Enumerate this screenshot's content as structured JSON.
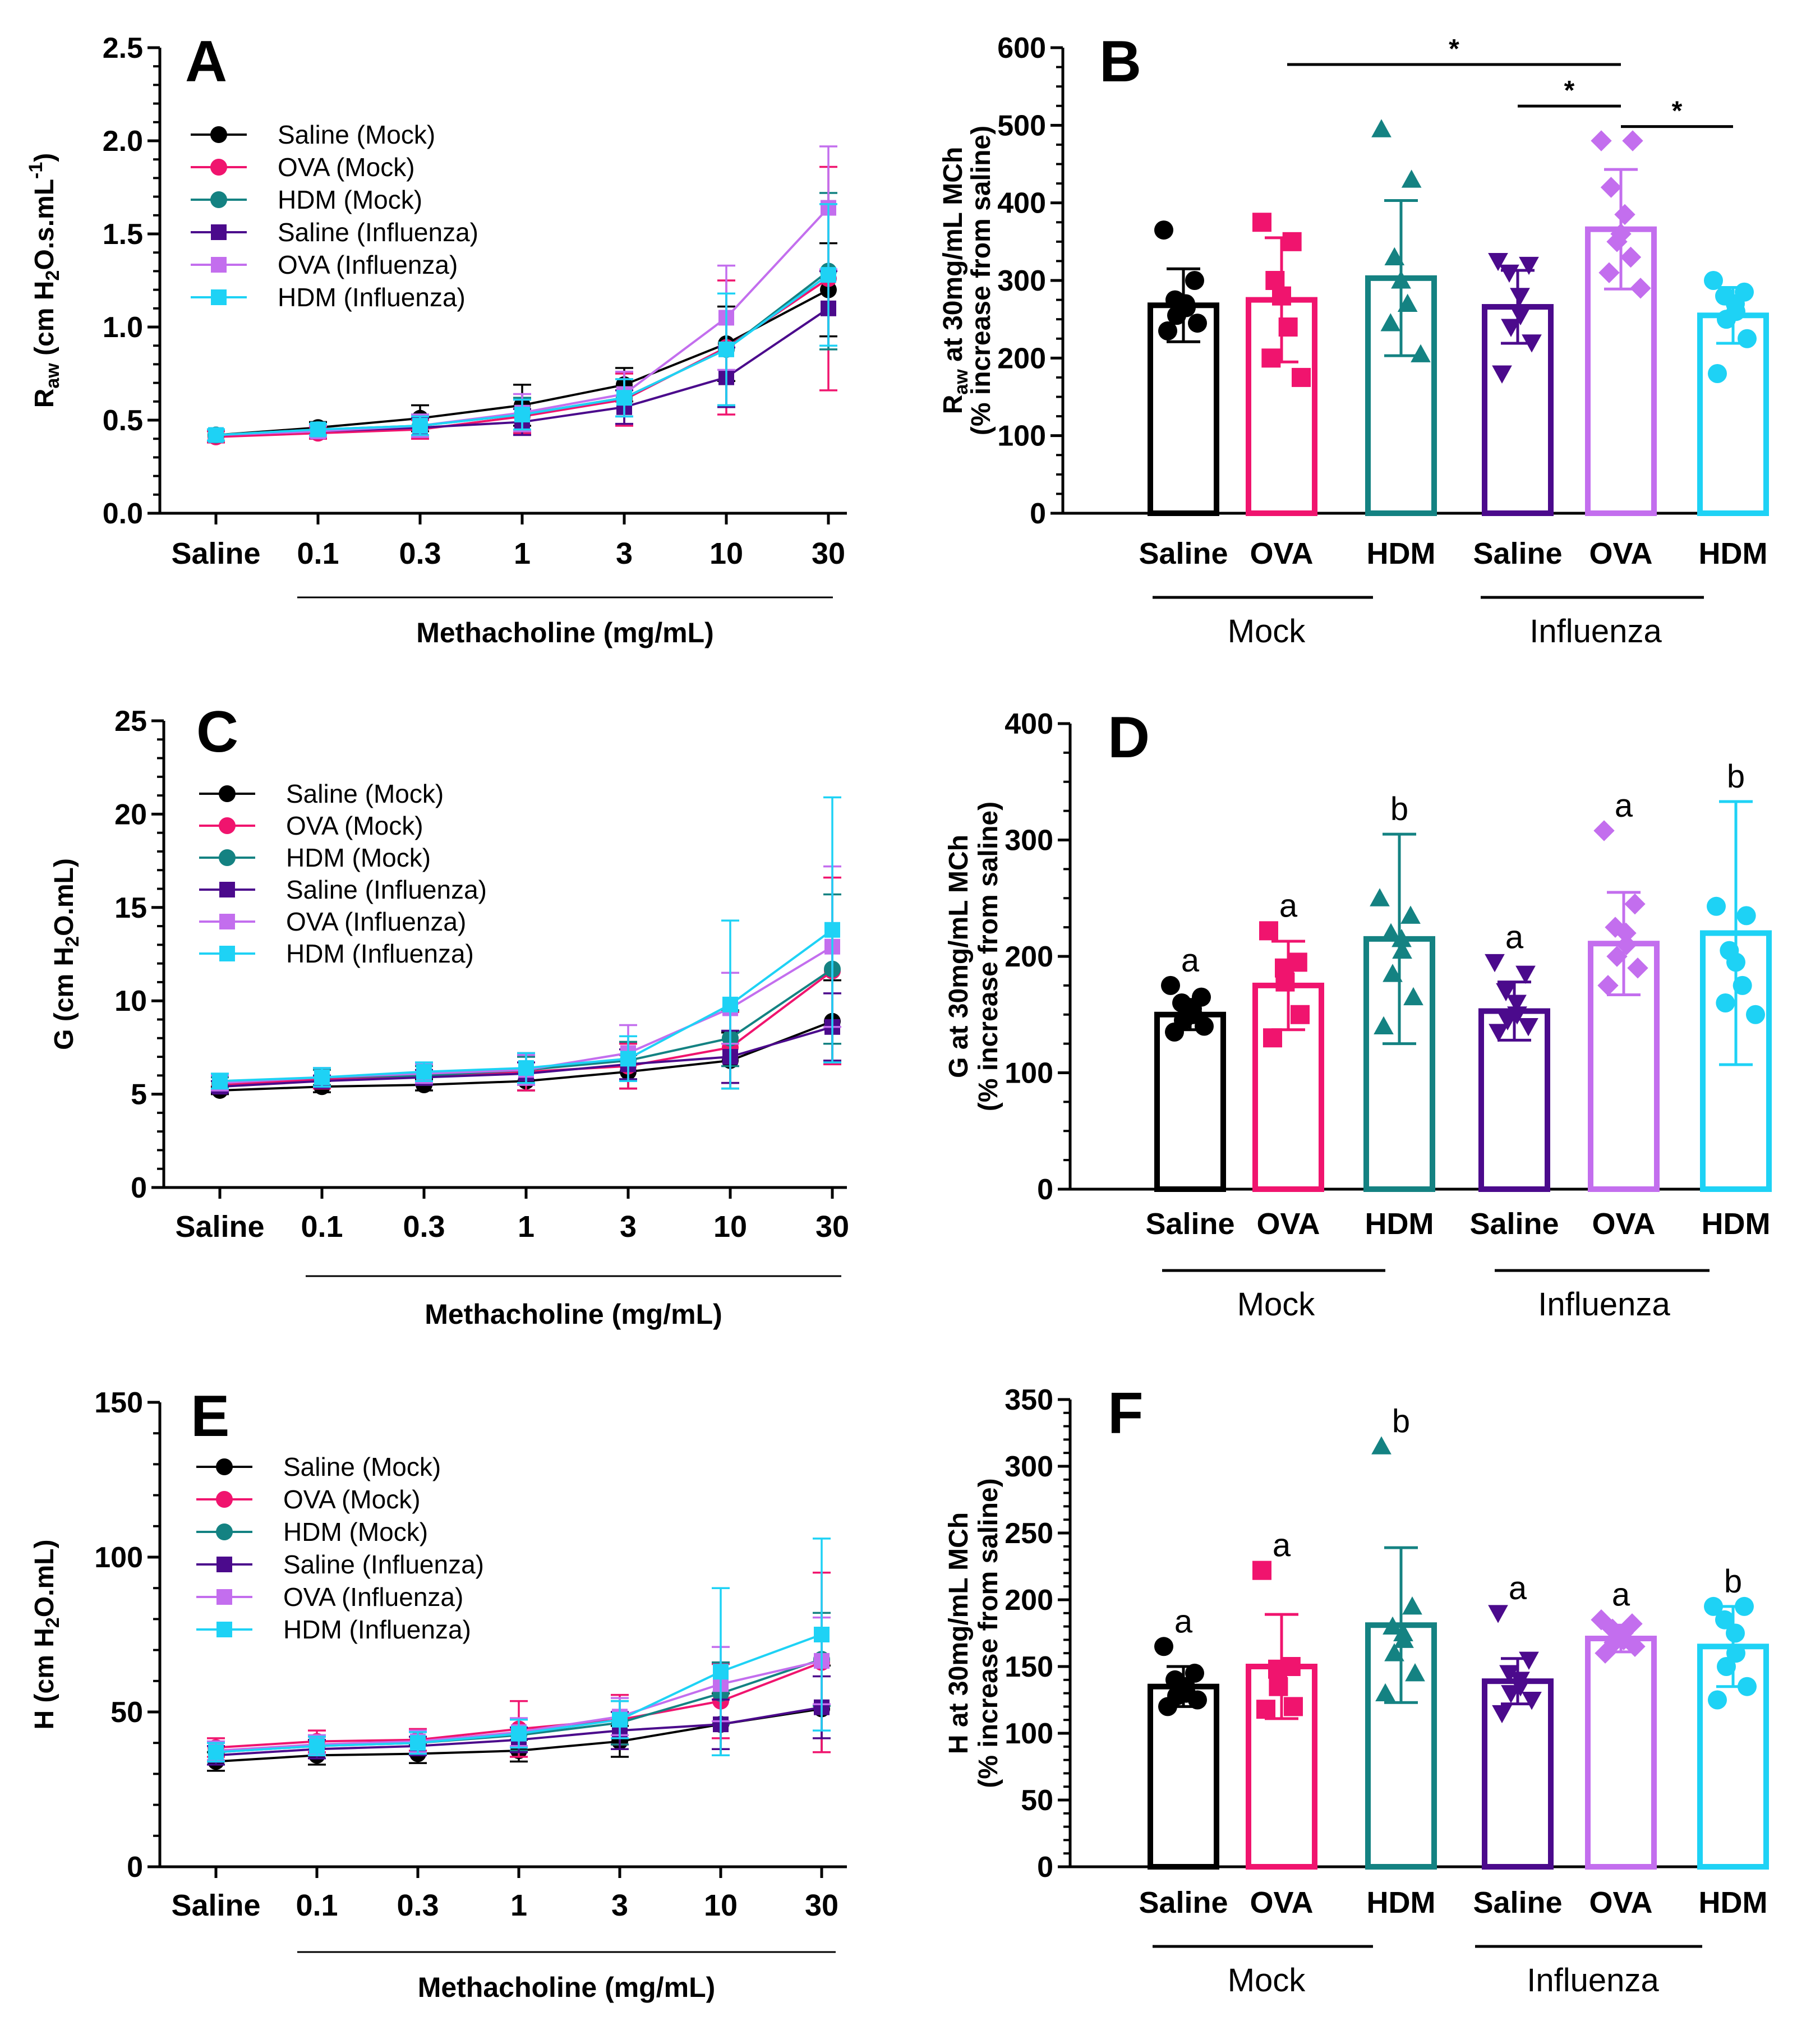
{
  "colors": {
    "saline_mock": "#000000",
    "ova_mock": "#f0146e",
    "hdm_mock": "#148282",
    "saline_influenza": "#4b0a8c",
    "ova_influenza": "#c36eee",
    "hdm_influenza": "#1ed2f5"
  },
  "chart_data": [
    {
      "panel": "A",
      "type": "line",
      "xlabel": "Methacholine (mg/mL)",
      "ylabel": {
        "main": "R",
        "sub": "aw",
        "rest": " (cm H",
        "sub2": "2",
        "rest2": "O.s.mL",
        "sup": "-1",
        "end": ")"
      },
      "categories": [
        "Saline",
        "0.1",
        "0.3",
        "1",
        "3",
        "10",
        "30"
      ],
      "ylim": [
        0,
        2.5
      ],
      "yticks": [
        "0.0",
        "0.5",
        "1.0",
        "1.5",
        "2.0",
        "2.5"
      ],
      "ytick_values": [
        0,
        0.5,
        1,
        1.5,
        2,
        2.5
      ],
      "series": [
        {
          "name": "Saline (Mock)",
          "marker": "circle",
          "color": "#000000",
          "values": [
            0.42,
            0.46,
            0.51,
            0.58,
            0.69,
            0.91,
            1.2
          ],
          "err": [
            0.03,
            0.03,
            0.07,
            0.11,
            0.09,
            0.2,
            0.25
          ]
        },
        {
          "name": "OVA (Mock)",
          "marker": "circle",
          "color": "#f0146e",
          "values": [
            0.41,
            0.43,
            0.45,
            0.52,
            0.61,
            0.89,
            1.26
          ],
          "err": [
            0.03,
            0.03,
            0.05,
            0.09,
            0.14,
            0.36,
            0.6
          ]
        },
        {
          "name": "HDM (Mock)",
          "marker": "circle",
          "color": "#148282",
          "values": [
            0.42,
            0.45,
            0.47,
            0.53,
            0.62,
            0.88,
            1.3
          ],
          "err": [
            0.03,
            0.03,
            0.06,
            0.09,
            0.1,
            0.3,
            0.42
          ]
        },
        {
          "name": "Saline (Influenza)",
          "marker": "square",
          "color": "#4b0a8c",
          "values": [
            0.42,
            0.44,
            0.46,
            0.49,
            0.57,
            0.73,
            1.1
          ],
          "err": [
            0.03,
            0.03,
            0.05,
            0.07,
            0.09,
            0.16,
            0.2
          ]
        },
        {
          "name": "OVA (Influenza)",
          "marker": "square",
          "color": "#c36eee",
          "values": [
            0.42,
            0.44,
            0.47,
            0.54,
            0.64,
            1.05,
            1.64
          ],
          "err": [
            0.03,
            0.03,
            0.06,
            0.1,
            0.12,
            0.28,
            0.33
          ]
        },
        {
          "name": "HDM (Influenza)",
          "marker": "square",
          "color": "#1ed2f5",
          "values": [
            0.42,
            0.45,
            0.47,
            0.53,
            0.62,
            0.88,
            1.28
          ],
          "err": [
            0.03,
            0.03,
            0.05,
            0.08,
            0.1,
            0.3,
            0.38
          ]
        }
      ]
    },
    {
      "panel": "B",
      "type": "bar",
      "ylabel": {
        "l1_a": "R",
        "l1_sub": "aw",
        "l1_b": " at 30mg/mL MCh",
        "l2": "(% increase from saline)"
      },
      "categories": [
        "Saline",
        "OVA",
        "HDM",
        "Saline",
        "OVA",
        "HDM"
      ],
      "groups": [
        "Mock",
        "Influenza"
      ],
      "ylim": [
        0,
        600
      ],
      "yticks": [
        "0",
        "100",
        "200",
        "300",
        "400",
        "500",
        "600"
      ],
      "ytick_values": [
        0,
        100,
        200,
        300,
        400,
        500,
        600
      ],
      "markers": [
        "circle",
        "square",
        "triangle-up",
        "triangle-down",
        "diamond",
        "circle"
      ],
      "values": [
        268,
        275,
        303,
        266,
        366,
        255
      ],
      "err": [
        47,
        80,
        100,
        47,
        77,
        36
      ],
      "points": [
        [
          365,
          300,
          275,
          270,
          265,
          255,
          245,
          235
        ],
        [
          375,
          350,
          300,
          280,
          240,
          200,
          175
        ],
        [
          495,
          430,
          330,
          300,
          270,
          245,
          205
        ],
        [
          325,
          320,
          310,
          280,
          255,
          240,
          220,
          180
        ],
        [
          480,
          480,
          420,
          385,
          360,
          350,
          330,
          310,
          290
        ],
        [
          300,
          285,
          280,
          270,
          260,
          250,
          225,
          180
        ]
      ],
      "significance": [
        {
          "from": 1,
          "to": 4,
          "label": "*"
        },
        {
          "from": 3,
          "to": 4,
          "label": "*"
        },
        {
          "from": 4,
          "to": 5,
          "label": "*"
        }
      ],
      "letters": []
    },
    {
      "panel": "C",
      "type": "line",
      "xlabel": "Methacholine (mg/mL)",
      "ylabel": {
        "main": "G",
        "sub": "",
        "rest": " (cm H",
        "sub2": "2",
        "rest2": "O.mL",
        "sup": "",
        "end": ")"
      },
      "categories": [
        "Saline",
        "0.1",
        "0.3",
        "1",
        "3",
        "10",
        "30"
      ],
      "ylim": [
        0,
        25
      ],
      "yticks": [
        "0",
        "5",
        "10",
        "15",
        "20",
        "25"
      ],
      "ytick_values": [
        0,
        5,
        10,
        15,
        20,
        25
      ],
      "series": [
        {
          "name": "Saline (Mock)",
          "marker": "circle",
          "color": "#000000",
          "values": [
            5.2,
            5.4,
            5.5,
            5.7,
            6.2,
            6.8,
            8.9
          ],
          "err": [
            0.2,
            0.3,
            0.3,
            0.5,
            0.9,
            1.5,
            2.2
          ]
        },
        {
          "name": "OVA (Mock)",
          "marker": "circle",
          "color": "#f0146e",
          "values": [
            5.5,
            5.8,
            6.0,
            6.2,
            6.5,
            7.5,
            11.6
          ],
          "err": [
            0.4,
            0.5,
            0.5,
            1.0,
            1.2,
            1.9,
            5.0
          ]
        },
        {
          "name": "HDM (Mock)",
          "marker": "circle",
          "color": "#148282",
          "values": [
            5.6,
            5.9,
            6.0,
            6.3,
            6.8,
            8.0,
            11.7
          ],
          "err": [
            0.3,
            0.4,
            0.5,
            0.7,
            1.0,
            1.5,
            4.0
          ]
        },
        {
          "name": "Saline (Influenza)",
          "marker": "square",
          "color": "#4b0a8c",
          "values": [
            5.4,
            5.7,
            5.9,
            6.1,
            6.6,
            7.0,
            8.6
          ],
          "err": [
            0.3,
            0.3,
            0.4,
            0.6,
            0.8,
            1.4,
            1.8
          ]
        },
        {
          "name": "OVA (Influenza)",
          "marker": "square",
          "color": "#c36eee",
          "values": [
            5.6,
            5.9,
            6.1,
            6.3,
            7.2,
            9.6,
            12.9
          ],
          "err": [
            0.4,
            0.5,
            0.5,
            0.8,
            1.5,
            1.9,
            4.3
          ]
        },
        {
          "name": "HDM (Influenza)",
          "marker": "square",
          "color": "#1ed2f5",
          "values": [
            5.7,
            5.9,
            6.2,
            6.4,
            6.9,
            9.8,
            13.8
          ],
          "err": [
            0.4,
            0.5,
            0.5,
            0.8,
            1.2,
            4.5,
            7.1
          ]
        }
      ]
    },
    {
      "panel": "D",
      "type": "bar",
      "ylabel": {
        "l1_a": "G",
        "l1_sub": "",
        "l1_b": " at 30mg/mL MCh",
        "l2": "(% increase from saline)"
      },
      "categories": [
        "Saline",
        "OVA",
        "HDM",
        "Saline",
        "OVA",
        "HDM"
      ],
      "groups": [
        "Mock",
        "Influenza"
      ],
      "ylim": [
        0,
        400
      ],
      "yticks": [
        "0",
        "100",
        "200",
        "300",
        "400"
      ],
      "ytick_values": [
        0,
        100,
        200,
        300,
        400
      ],
      "markers": [
        "circle",
        "square",
        "triangle-up",
        "triangle-down",
        "diamond",
        "circle"
      ],
      "values": [
        150,
        175,
        215,
        153,
        211,
        220
      ],
      "err": [
        13,
        38,
        90,
        25,
        44,
        113
      ],
      "points": [
        [
          175,
          165,
          160,
          155,
          150,
          145,
          140,
          135
        ],
        [
          222,
          195,
          190,
          178,
          150,
          130
        ],
        [
          250,
          235,
          220,
          215,
          205,
          185,
          165,
          140
        ],
        [
          195,
          185,
          170,
          160,
          150,
          145,
          140,
          135
        ],
        [
          308,
          245,
          225,
          220,
          210,
          200,
          190,
          175
        ],
        [
          243,
          235,
          205,
          195,
          175,
          160,
          150
        ]
      ],
      "significance": [],
      "letters": [
        "a",
        "a",
        "b",
        "a",
        "a",
        "b"
      ]
    },
    {
      "panel": "E",
      "type": "line",
      "xlabel": "Methacholine (mg/mL)",
      "ylabel": {
        "main": "H",
        "sub": "",
        "rest": " (cm H",
        "sub2": "2",
        "rest2": "O.mL",
        "sup": "",
        "end": ")"
      },
      "categories": [
        "Saline",
        "0.1",
        "0.3",
        "1",
        "3",
        "10",
        "30"
      ],
      "ylim": [
        0,
        150
      ],
      "yticks": [
        "0",
        "50",
        "100",
        "150"
      ],
      "ytick_values": [
        0,
        50,
        100,
        150
      ],
      "series": [
        {
          "name": "Saline (Mock)",
          "marker": "circle",
          "color": "#000000",
          "values": [
            34,
            36,
            36.5,
            37.5,
            40.5,
            46,
            51
          ],
          "err": [
            3,
            3,
            3,
            3.5,
            5,
            10,
            14
          ]
        },
        {
          "name": "OVA (Mock)",
          "marker": "circle",
          "color": "#f0146e",
          "values": [
            38.5,
            40.5,
            41,
            44.5,
            47.5,
            53.5,
            66
          ],
          "err": [
            3,
            3.5,
            3.5,
            9,
            8,
            12,
            29
          ]
        },
        {
          "name": "HDM (Mock)",
          "marker": "circle",
          "color": "#148282",
          "values": [
            37,
            39,
            40,
            42.5,
            46.5,
            56,
            67
          ],
          "err": [
            3,
            3,
            3.5,
            5,
            7,
            10,
            15
          ]
        },
        {
          "name": "Saline (Influenza)",
          "marker": "square",
          "color": "#4b0a8c",
          "values": [
            36,
            38,
            39,
            41,
            44,
            46,
            51.5
          ],
          "err": [
            3,
            3,
            3,
            4,
            6,
            8,
            10
          ]
        },
        {
          "name": "OVA (Influenza)",
          "marker": "square",
          "color": "#c36eee",
          "values": [
            37.5,
            39.5,
            40.5,
            43.5,
            48.5,
            59,
            66.5
          ],
          "err": [
            3,
            3,
            3.5,
            4.5,
            6,
            12,
            14
          ]
        },
        {
          "name": "HDM (Influenza)",
          "marker": "square",
          "color": "#1ed2f5",
          "values": [
            37,
            39,
            40,
            43,
            47.5,
            63,
            75
          ],
          "err": [
            3,
            3,
            3.5,
            4.5,
            6,
            27,
            31
          ]
        }
      ]
    },
    {
      "panel": "F",
      "type": "bar",
      "ylabel": {
        "l1_a": "H",
        "l1_sub": "",
        "l1_b": " at 30mg/mL MCh",
        "l2": "(% increase from saline)"
      },
      "categories": [
        "Saline",
        "OVA",
        "HDM",
        "Saline",
        "OVA",
        "HDM"
      ],
      "groups": [
        "Mock",
        "Influenza"
      ],
      "ylim": [
        0,
        350
      ],
      "yticks": [
        "0",
        "50",
        "100",
        "150",
        "200",
        "250",
        "300",
        "350"
      ],
      "ytick_values": [
        0,
        50,
        100,
        150,
        200,
        250,
        300,
        350
      ],
      "markers": [
        "circle",
        "square",
        "triangle-up",
        "triangle-down",
        "diamond",
        "circle"
      ],
      "values": [
        135,
        150,
        181,
        139,
        171,
        165
      ],
      "err": [
        15,
        39,
        58,
        17,
        10,
        30
      ],
      "points": [
        [
          165,
          145,
          140,
          135,
          130,
          128,
          125,
          120
        ],
        [
          222,
          150,
          148,
          135,
          120,
          118
        ],
        [
          315,
          195,
          180,
          175,
          170,
          160,
          145,
          130
        ],
        [
          190,
          155,
          145,
          140,
          135,
          130,
          125,
          115
        ],
        [
          185,
          182,
          178,
          175,
          170,
          168,
          165,
          160
        ],
        [
          195,
          195,
          185,
          175,
          160,
          150,
          135,
          125
        ]
      ],
      "significance": [],
      "letters": [
        "a",
        "a",
        "b",
        "a",
        "a",
        "b"
      ]
    }
  ]
}
